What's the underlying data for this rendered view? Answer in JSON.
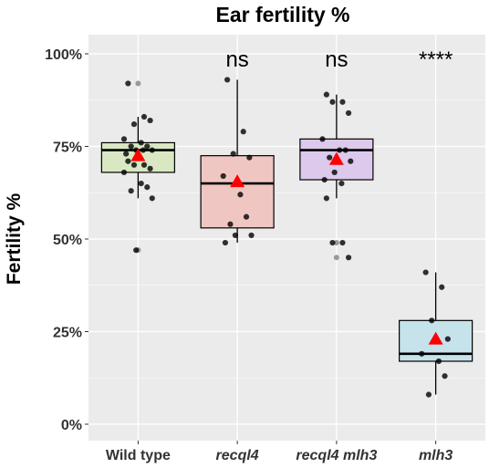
{
  "chart_data": {
    "type": "box",
    "title": "Ear fertility %",
    "xlabel": "",
    "ylabel": "Fertility %",
    "ylim": [
      -0.03,
      1.03
    ],
    "yticks": [
      0,
      0.25,
      0.5,
      0.75,
      1.0
    ],
    "ytick_labels": [
      "0%",
      "25%",
      "50%",
      "75%",
      "100%"
    ],
    "background": "#ebebeb",
    "grid": true,
    "categories": [
      {
        "label": "Wild type",
        "italic": false,
        "fill": "#d9e8c3",
        "significance": ""
      },
      {
        "label": "recql4",
        "italic": true,
        "fill": "#f0c6c3",
        "significance": "ns"
      },
      {
        "label": "recql4 mlh3",
        "italic": true,
        "fill": "#dcc9ec",
        "significance": "ns"
      },
      {
        "label": "mlh3",
        "italic": true,
        "fill": "#c6e2ea",
        "significance": "****"
      }
    ],
    "boxes": [
      {
        "whisker_low": 0.61,
        "q1": 0.68,
        "median": 0.74,
        "q3": 0.76,
        "whisker_high": 0.83,
        "mean": 0.725,
        "outliers": [
          0.92,
          0.47
        ],
        "points": [
          0.92,
          0.83,
          0.81,
          0.82,
          0.77,
          0.76,
          0.75,
          0.75,
          0.74,
          0.74,
          0.73,
          0.74,
          0.71,
          0.7,
          0.7,
          0.69,
          0.68,
          0.65,
          0.64,
          0.63,
          0.61,
          0.47
        ]
      },
      {
        "whisker_low": 0.49,
        "q1": 0.53,
        "median": 0.65,
        "q3": 0.725,
        "whisker_high": 0.93,
        "mean": 0.655,
        "outliers": [],
        "points": [
          0.93,
          0.79,
          0.73,
          0.72,
          0.67,
          0.62,
          0.56,
          0.54,
          0.51,
          0.51,
          0.49
        ]
      },
      {
        "whisker_low": 0.61,
        "q1": 0.66,
        "median": 0.74,
        "q3": 0.77,
        "whisker_high": 0.89,
        "mean": 0.715,
        "outliers": [
          0.49,
          0.45
        ],
        "points": [
          0.89,
          0.87,
          0.87,
          0.84,
          0.77,
          0.74,
          0.74,
          0.72,
          0.71,
          0.68,
          0.66,
          0.65,
          0.61,
          0.49,
          0.49,
          0.45
        ]
      },
      {
        "whisker_low": 0.08,
        "q1": 0.17,
        "median": 0.19,
        "q3": 0.28,
        "whisker_high": 0.41,
        "mean": 0.23,
        "outliers": [],
        "points": [
          0.41,
          0.37,
          0.28,
          0.23,
          0.19,
          0.17,
          0.13,
          0.08
        ]
      }
    ],
    "mean_marker": {
      "shape": "triangle",
      "color": "#ff0000"
    },
    "point_color": "#000000"
  }
}
